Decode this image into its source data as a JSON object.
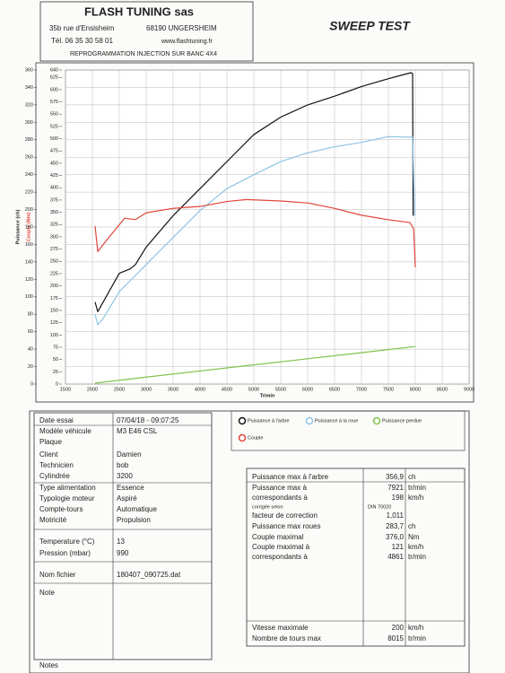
{
  "header": {
    "company": "FLASH TUNING sas",
    "street": "35b rue d'Ensisheim",
    "city": "68190 UNGERSHEIM",
    "phone": "Tél. 06 35 30 58 01",
    "website": "www.flashtuning.fr",
    "tagline": "REPROGRAMMATION INJECTION SUR BANC 4X4",
    "report_title": "SWEEP TEST"
  },
  "chart_data": {
    "type": "line",
    "xlabel": "Trimin",
    "ylabel": "Puissance (ch)",
    "y2label": "Couple (Nm)",
    "xlim": [
      1500,
      9000
    ],
    "xticks": [
      1500,
      2000,
      2500,
      3000,
      3500,
      4000,
      4500,
      5000,
      5500,
      6000,
      6500,
      7000,
      7500,
      8000,
      8500,
      9000
    ],
    "ylim": [
      0,
      360
    ],
    "yticks": [
      0,
      20,
      40,
      60,
      80,
      100,
      120,
      140,
      160,
      180,
      200,
      220,
      240,
      260,
      280,
      300,
      320,
      340,
      360
    ],
    "y2lim": [
      0,
      640
    ],
    "y2ticks": [
      0,
      25,
      50,
      75,
      100,
      125,
      150,
      175,
      200,
      225,
      250,
      275,
      300,
      325,
      350,
      375,
      400,
      425,
      450,
      475,
      500,
      525,
      550,
      575,
      600,
      625,
      640
    ],
    "grid": true,
    "series": [
      {
        "name": "Puissance à l'arbre",
        "color": "#111111",
        "x": [
          2050,
          2100,
          2300,
          2500,
          2700,
          2800,
          3000,
          3500,
          4000,
          4500,
          5000,
          5500,
          6000,
          6500,
          7000,
          7500,
          7921,
          7950,
          7960
        ],
        "values": [
          94,
          83,
          105,
          127,
          132,
          137,
          157,
          193,
          224,
          255,
          286,
          306,
          320,
          330,
          341,
          350,
          356.9,
          356,
          193
        ]
      },
      {
        "name": "Puissance à la roue",
        "color": "#8ec3e6",
        "x": [
          2050,
          2100,
          2200,
          2500,
          3000,
          3500,
          4000,
          4500,
          5000,
          5500,
          6000,
          6500,
          7000,
          7500,
          7900,
          7950,
          7990
        ],
        "values": [
          80,
          68,
          75,
          106,
          137,
          168,
          199,
          224,
          240,
          255,
          265,
          272,
          277,
          283.7,
          283,
          283,
          193
        ]
      },
      {
        "name": "Puissance perdue",
        "color": "#7fc34a",
        "x": [
          2050,
          3000,
          4000,
          5000,
          6000,
          7000,
          8000
        ],
        "values": [
          1,
          8,
          15,
          22,
          29,
          36,
          43
        ]
      },
      {
        "name": "Couple",
        "color": "#e0453a",
        "axis": "y2",
        "x": [
          2050,
          2100,
          2300,
          2600,
          2800,
          3000,
          3500,
          4000,
          4500,
          4861,
          5500,
          6000,
          6500,
          7000,
          7500,
          7900,
          7970,
          8000
        ],
        "values": [
          322,
          270,
          298,
          338,
          335,
          349,
          358,
          362,
          372,
          376,
          373,
          369,
          358,
          344,
          335,
          329,
          316,
          238
        ]
      }
    ]
  },
  "info": {
    "rows": [
      {
        "label": "Date essai",
        "value": "07/04/18 - 09:07:25"
      },
      {
        "label": "Modèle véhicule",
        "value": "M3 E46 CSL"
      },
      {
        "label": "Plaque"
      },
      {
        "label": "Client",
        "value": "Damien"
      },
      {
        "label": "Technicien",
        "value": "bob"
      },
      {
        "label": "Cylindrée",
        "value": "3200"
      },
      {
        "label": "Type alimentation",
        "value": "Essence"
      },
      {
        "label": "Typologie moteur",
        "value": "Aspiré"
      },
      {
        "label": "Compte-tours",
        "value": "Automatique"
      },
      {
        "label": "Motricité",
        "value": "Propulsion"
      },
      {
        "label": "Temperature (°C)",
        "value": "13"
      },
      {
        "label": "Pression (mbar)",
        "value": "990"
      },
      {
        "label": "Nom fichier",
        "value": "180407_090725.dat"
      },
      {
        "label": "Note"
      }
    ],
    "notes": "Notes"
  },
  "results": {
    "rows": [
      {
        "label": "Puissance max à l'arbre",
        "value": "356,9",
        "unit": "ch"
      },
      {
        "label": "Puissance max à",
        "value": "7921",
        "unit": "tr/min"
      },
      {
        "label": "correspondants à",
        "value": "198",
        "unit": "km/h"
      },
      {
        "label": "corrigée selon",
        "value": "DIN 70020"
      },
      {
        "label": "facteur de correction",
        "value": "1,011"
      },
      {
        "label": "Puissance max roues",
        "value": "283,7",
        "unit": "ch"
      },
      {
        "label": "Couple maximal",
        "value": "376,0",
        "unit": "Nm"
      },
      {
        "label": "Couple maximal à",
        "value": "121",
        "unit": "km/h"
      },
      {
        "label": "correspondants à",
        "value": "4861",
        "unit": "tr/min"
      },
      {
        "label": "Vitesse maximale",
        "value": "200",
        "unit": "km/h"
      },
      {
        "label": "Nombre de tours max",
        "value": "8015",
        "unit": "tr/min"
      }
    ]
  }
}
